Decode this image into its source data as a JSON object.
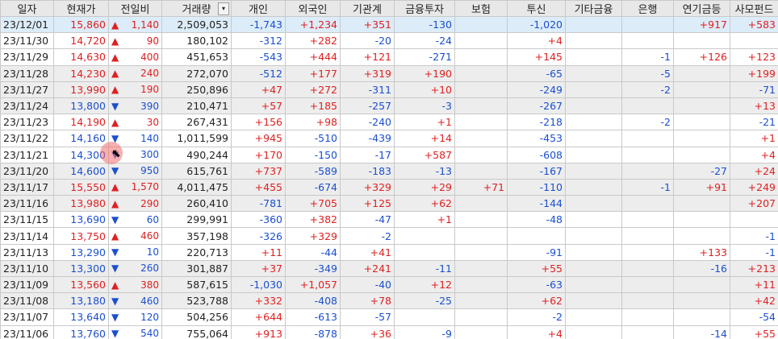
{
  "headers": {
    "date": "일자",
    "price": "현재가",
    "change": "전일비",
    "volume": "거래량",
    "individual": "개인",
    "foreign": "외국인",
    "institution": "기관계",
    "fin_invest": "금융투자",
    "insurance": "보험",
    "trust": "투신",
    "other_fin": "기타금융",
    "bank": "은행",
    "pension": "연기금등",
    "private_fund": "사모펀드"
  },
  "volume_dropdown": "▾",
  "rows": [
    {
      "date": "23/12/01",
      "price": "15,860",
      "dir": "up",
      "change": "1,140",
      "volume": "2,509,053",
      "individual": "-1,743",
      "foreign": "+1,234",
      "institution": "+351",
      "fin_invest": "-130",
      "insurance": "",
      "trust": "-1,020",
      "other_fin": "",
      "bank": "",
      "pension": "+917",
      "private_fund": "+583"
    },
    {
      "date": "23/11/30",
      "price": "14,720",
      "dir": "up",
      "change": "90",
      "volume": "180,102",
      "individual": "-312",
      "foreign": "+282",
      "institution": "-20",
      "fin_invest": "-24",
      "insurance": "",
      "trust": "+4",
      "other_fin": "",
      "bank": "",
      "pension": "",
      "private_fund": ""
    },
    {
      "date": "23/11/29",
      "price": "14,630",
      "dir": "up",
      "change": "400",
      "volume": "451,653",
      "individual": "-543",
      "foreign": "+444",
      "institution": "+121",
      "fin_invest": "-271",
      "insurance": "",
      "trust": "+145",
      "other_fin": "",
      "bank": "-1",
      "pension": "+126",
      "private_fund": "+123"
    },
    {
      "date": "23/11/28",
      "price": "14,230",
      "dir": "up",
      "change": "240",
      "volume": "272,070",
      "individual": "-512",
      "foreign": "+177",
      "institution": "+319",
      "fin_invest": "+190",
      "insurance": "",
      "trust": "-65",
      "other_fin": "",
      "bank": "-5",
      "pension": "",
      "private_fund": "+199"
    },
    {
      "date": "23/11/27",
      "price": "13,990",
      "dir": "up",
      "change": "190",
      "volume": "250,896",
      "individual": "+47",
      "foreign": "+272",
      "institution": "-311",
      "fin_invest": "+10",
      "insurance": "",
      "trust": "-249",
      "other_fin": "",
      "bank": "-2",
      "pension": "",
      "private_fund": "-71"
    },
    {
      "date": "23/11/24",
      "price": "13,800",
      "dir": "down",
      "change": "390",
      "volume": "210,471",
      "individual": "+57",
      "foreign": "+185",
      "institution": "-257",
      "fin_invest": "-3",
      "insurance": "",
      "trust": "-267",
      "other_fin": "",
      "bank": "",
      "pension": "",
      "private_fund": "+13"
    },
    {
      "date": "23/11/23",
      "price": "14,190",
      "dir": "up",
      "change": "30",
      "volume": "267,431",
      "individual": "+156",
      "foreign": "+98",
      "institution": "-240",
      "fin_invest": "+1",
      "insurance": "",
      "trust": "-218",
      "other_fin": "",
      "bank": "-2",
      "pension": "",
      "private_fund": "-21"
    },
    {
      "date": "23/11/22",
      "price": "14,160",
      "dir": "down",
      "change": "140",
      "volume": "1,011,599",
      "individual": "+945",
      "foreign": "-510",
      "institution": "-439",
      "fin_invest": "+14",
      "insurance": "",
      "trust": "-453",
      "other_fin": "",
      "bank": "",
      "pension": "",
      "private_fund": "+1"
    },
    {
      "date": "23/11/21",
      "price": "14,300",
      "dir": "down",
      "change": "300",
      "volume": "490,244",
      "individual": "+170",
      "foreign": "-150",
      "institution": "-17",
      "fin_invest": "+587",
      "insurance": "",
      "trust": "-608",
      "other_fin": "",
      "bank": "",
      "pension": "",
      "private_fund": "+4"
    },
    {
      "date": "23/11/20",
      "price": "14,600",
      "dir": "down",
      "change": "950",
      "volume": "615,761",
      "individual": "+737",
      "foreign": "-589",
      "institution": "-183",
      "fin_invest": "-13",
      "insurance": "",
      "trust": "-167",
      "other_fin": "",
      "bank": "",
      "pension": "-27",
      "private_fund": "+24"
    },
    {
      "date": "23/11/17",
      "price": "15,550",
      "dir": "up",
      "change": "1,570",
      "volume": "4,011,475",
      "individual": "+455",
      "foreign": "-674",
      "institution": "+329",
      "fin_invest": "+29",
      "insurance": "+71",
      "trust": "-110",
      "other_fin": "",
      "bank": "-1",
      "pension": "+91",
      "private_fund": "+249"
    },
    {
      "date": "23/11/16",
      "price": "13,980",
      "dir": "up",
      "change": "290",
      "volume": "260,410",
      "individual": "-781",
      "foreign": "+705",
      "institution": "+125",
      "fin_invest": "+62",
      "insurance": "",
      "trust": "-144",
      "other_fin": "",
      "bank": "",
      "pension": "",
      "private_fund": "+207"
    },
    {
      "date": "23/11/15",
      "price": "13,690",
      "dir": "down",
      "change": "60",
      "volume": "299,991",
      "individual": "-360",
      "foreign": "+382",
      "institution": "-47",
      "fin_invest": "+1",
      "insurance": "",
      "trust": "-48",
      "other_fin": "",
      "bank": "",
      "pension": "",
      "private_fund": ""
    },
    {
      "date": "23/11/14",
      "price": "13,750",
      "dir": "up",
      "change": "460",
      "volume": "357,198",
      "individual": "-326",
      "foreign": "+329",
      "institution": "-2",
      "fin_invest": "",
      "insurance": "",
      "trust": "",
      "other_fin": "",
      "bank": "",
      "pension": "",
      "private_fund": "-1"
    },
    {
      "date": "23/11/13",
      "price": "13,290",
      "dir": "down",
      "change": "10",
      "volume": "220,713",
      "individual": "+11",
      "foreign": "-44",
      "institution": "+41",
      "fin_invest": "",
      "insurance": "",
      "trust": "-91",
      "other_fin": "",
      "bank": "",
      "pension": "+133",
      "private_fund": "-1"
    },
    {
      "date": "23/11/10",
      "price": "13,300",
      "dir": "down",
      "change": "260",
      "volume": "301,887",
      "individual": "+37",
      "foreign": "-349",
      "institution": "+241",
      "fin_invest": "-11",
      "insurance": "",
      "trust": "+55",
      "other_fin": "",
      "bank": "",
      "pension": "-16",
      "private_fund": "+213"
    },
    {
      "date": "23/11/09",
      "price": "13,560",
      "dir": "up",
      "change": "380",
      "volume": "587,615",
      "individual": "-1,030",
      "foreign": "+1,057",
      "institution": "-40",
      "fin_invest": "+12",
      "insurance": "",
      "trust": "-63",
      "other_fin": "",
      "bank": "",
      "pension": "",
      "private_fund": "+11"
    },
    {
      "date": "23/11/08",
      "price": "13,180",
      "dir": "down",
      "change": "460",
      "volume": "523,788",
      "individual": "+332",
      "foreign": "-408",
      "institution": "+78",
      "fin_invest": "-25",
      "insurance": "",
      "trust": "+62",
      "other_fin": "",
      "bank": "",
      "pension": "",
      "private_fund": "+42"
    },
    {
      "date": "23/11/07",
      "price": "13,640",
      "dir": "down",
      "change": "120",
      "volume": "504,256",
      "individual": "+644",
      "foreign": "-613",
      "institution": "-57",
      "fin_invest": "",
      "insurance": "",
      "trust": "-2",
      "other_fin": "",
      "bank": "",
      "pension": "",
      "private_fund": "-54"
    },
    {
      "date": "23/11/06",
      "price": "13,760",
      "dir": "down",
      "change": "540",
      "volume": "755,064",
      "individual": "+913",
      "foreign": "-878",
      "institution": "+36",
      "fin_invest": "-9",
      "insurance": "",
      "trust": "+4",
      "other_fin": "",
      "bank": "",
      "pension": "-14",
      "private_fund": "+55"
    }
  ]
}
